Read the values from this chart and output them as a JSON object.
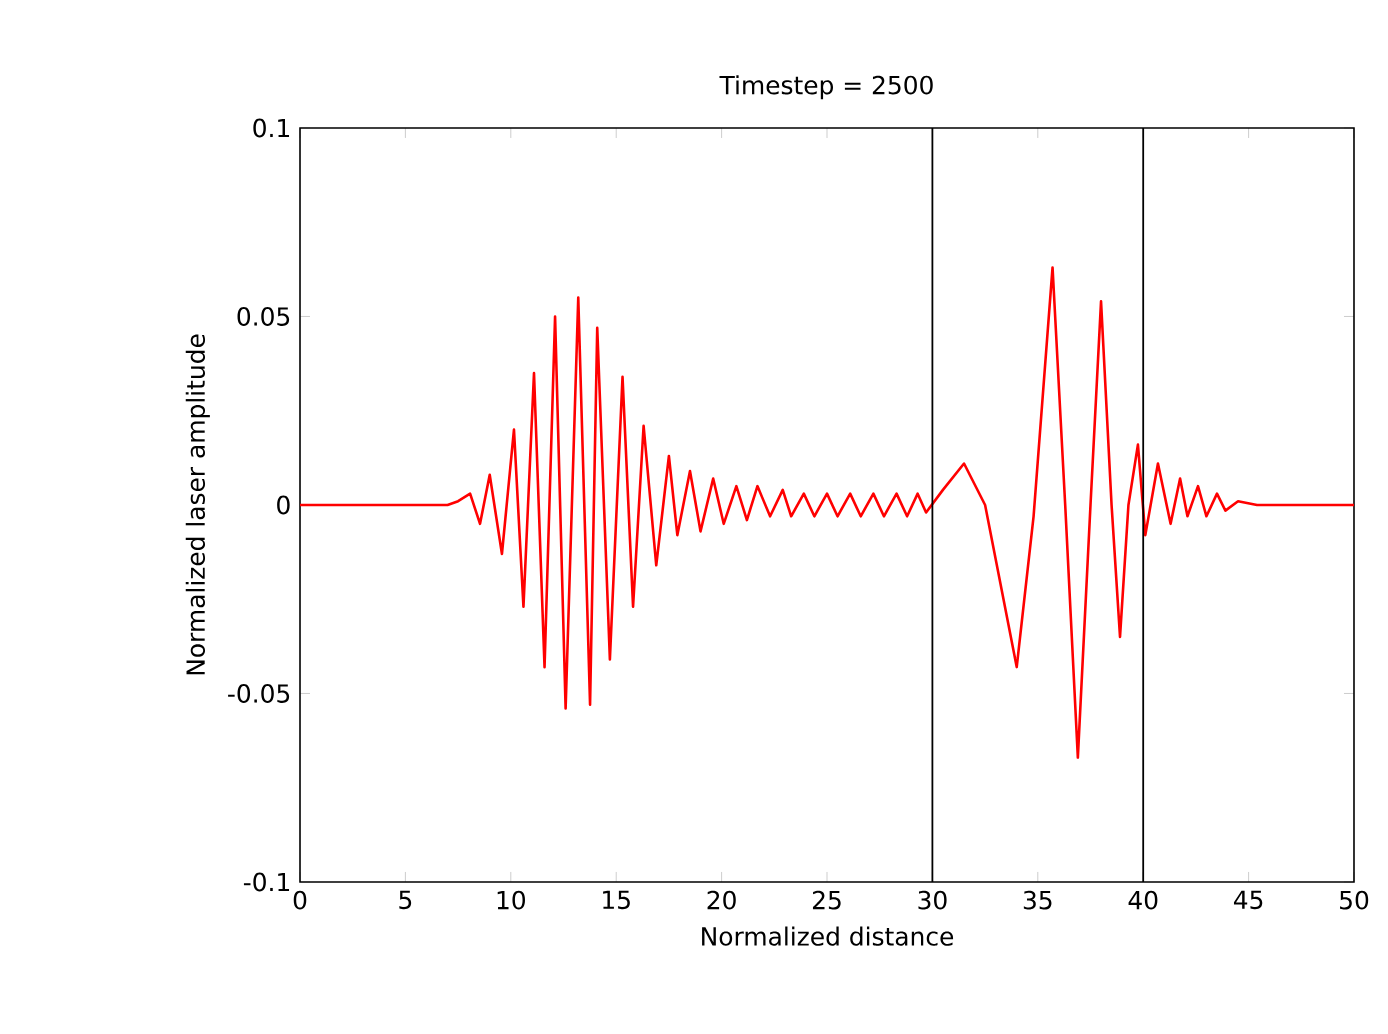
{
  "chart_data": {
    "type": "line",
    "title": "Timestep = 2500",
    "xlabel": "Normalized distance",
    "ylabel": "Normalized laser amplitude",
    "x": [
      0,
      7,
      7.5,
      8.07,
      8.54,
      9.0,
      9.58,
      10.15,
      10.6,
      11.1,
      11.6,
      12.1,
      12.6,
      13.2,
      13.76,
      14.1,
      14.7,
      15.3,
      15.8,
      16.3,
      16.9,
      17.5,
      17.9,
      18.5,
      19.0,
      19.6,
      20.1,
      20.7,
      21.2,
      21.7,
      22.3,
      22.9,
      23.3,
      23.9,
      24.4,
      25.0,
      25.5,
      26.1,
      26.6,
      27.2,
      27.7,
      28.3,
      28.8,
      29.3,
      29.7,
      30.5,
      31.5,
      32.5,
      34.0,
      34.8,
      35.7,
      36.3,
      36.9,
      37.5,
      38.0,
      38.5,
      38.9,
      39.3,
      39.75,
      40.1,
      40.7,
      41.3,
      41.75,
      42.1,
      42.6,
      43.0,
      43.5,
      43.9,
      44.5,
      45.4,
      50
    ],
    "series": [
      {
        "color": "#ff0000",
        "values": [
          0,
          0,
          0.001,
          0.003,
          -0.005,
          0.008,
          -0.013,
          0.02,
          -0.027,
          0.035,
          -0.043,
          0.05,
          -0.054,
          0.055,
          -0.053,
          0.047,
          -0.041,
          0.034,
          -0.027,
          0.021,
          -0.016,
          0.013,
          -0.008,
          0.009,
          -0.007,
          0.007,
          -0.005,
          0.005,
          -0.004,
          0.005,
          -0.003,
          0.004,
          -0.003,
          0.003,
          -0.003,
          0.003,
          -0.003,
          0.003,
          -0.003,
          0.003,
          -0.003,
          0.003,
          -0.003,
          0.003,
          -0.002,
          0.004,
          0.011,
          0.0,
          -0.043,
          -0.003,
          0.063,
          0.0,
          -0.067,
          0.0,
          0.054,
          0.0,
          -0.035,
          0.0,
          0.016,
          -0.008,
          0.011,
          -0.005,
          0.007,
          -0.003,
          0.005,
          -0.003,
          0.003,
          -0.0015,
          0.001,
          0,
          0
        ]
      }
    ],
    "xlim": [
      0,
      50
    ],
    "ylim": [
      -0.1,
      0.1
    ],
    "xticks": [
      0,
      5,
      10,
      15,
      20,
      25,
      30,
      35,
      40,
      45,
      50
    ],
    "yticks": [
      -0.1,
      -0.05,
      0,
      0.05,
      0.1
    ],
    "ref_lines": [
      {
        "axis": "x",
        "value": 30,
        "color": "#000000"
      },
      {
        "axis": "x",
        "value": 40,
        "color": "#000000"
      }
    ]
  }
}
